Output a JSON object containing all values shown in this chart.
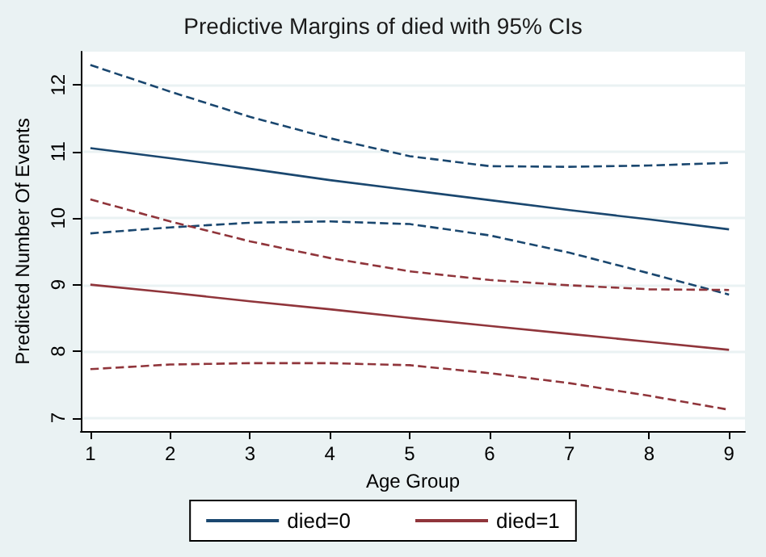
{
  "chart_data": {
    "type": "line",
    "title": "Predictive Margins of died with 95% CIs",
    "xlabel": "Age Group",
    "ylabel": "Predicted Number Of Events",
    "x": [
      1,
      2,
      3,
      4,
      5,
      6,
      7,
      8,
      9
    ],
    "series": [
      {
        "name": "died=0",
        "color": "#1a476f",
        "values": [
          11.05,
          10.9,
          10.74,
          10.57,
          10.42,
          10.27,
          10.12,
          9.98,
          9.83
        ]
      },
      {
        "color": "#1a476f",
        "line_style": "dashed",
        "values": [
          9.77,
          9.86,
          9.93,
          9.95,
          9.91,
          9.74,
          9.48,
          9.17,
          8.85
        ]
      },
      {
        "color": "#1a476f",
        "line_style": "dashed",
        "values": [
          12.3,
          11.9,
          11.52,
          11.2,
          10.93,
          10.78,
          10.77,
          10.79,
          10.83
        ]
      },
      {
        "name": "died=1",
        "color": "#90353b",
        "values": [
          9.0,
          8.88,
          8.75,
          8.63,
          8.5,
          8.38,
          8.26,
          8.14,
          8.02
        ]
      },
      {
        "color": "#90353b",
        "line_style": "dashed",
        "values": [
          7.73,
          7.8,
          7.82,
          7.82,
          7.79,
          7.67,
          7.52,
          7.33,
          7.12
        ]
      },
      {
        "color": "#90353b",
        "line_style": "dashed",
        "values": [
          10.28,
          9.95,
          9.65,
          9.4,
          9.2,
          9.07,
          8.99,
          8.93,
          8.92
        ]
      }
    ],
    "xlim": [
      0.88,
      9.2
    ],
    "xticks": [
      1,
      2,
      3,
      4,
      5,
      6,
      7,
      8,
      9
    ],
    "ylim": [
      6.8,
      12.5
    ],
    "yticks": [
      7,
      8,
      9,
      10,
      11,
      12
    ],
    "grid": "y",
    "legend": "bottom",
    "marker": "none",
    "line_style": "solid"
  }
}
